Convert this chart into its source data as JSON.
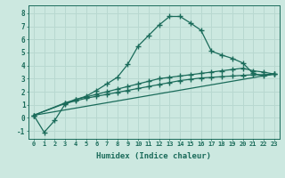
{
  "title": "",
  "xlabel": "Humidex (Indice chaleur)",
  "xlim": [
    -0.5,
    23.5
  ],
  "ylim": [
    -1.6,
    8.6
  ],
  "xticks": [
    0,
    1,
    2,
    3,
    4,
    5,
    6,
    7,
    8,
    9,
    10,
    11,
    12,
    13,
    14,
    15,
    16,
    17,
    18,
    19,
    20,
    21,
    22,
    23
  ],
  "yticks": [
    -1,
    0,
    1,
    2,
    3,
    4,
    5,
    6,
    7,
    8
  ],
  "bg_color": "#cce8e0",
  "grid_color": "#b8d8d0",
  "line_color": "#1a6b5a",
  "curve1_x": [
    0,
    1,
    2,
    3,
    4,
    5,
    6,
    7,
    8,
    9,
    10,
    11,
    12,
    13,
    14,
    15,
    16,
    17,
    18,
    19,
    20,
    21,
    22,
    23
  ],
  "curve1_y": [
    0.2,
    -1.1,
    -0.2,
    1.05,
    1.4,
    1.65,
    2.1,
    2.6,
    3.1,
    4.1,
    5.5,
    6.3,
    7.1,
    7.75,
    7.75,
    7.25,
    6.7,
    5.1,
    4.8,
    4.55,
    4.2,
    3.4,
    3.2,
    3.35
  ],
  "curve2_x": [
    0,
    3,
    4,
    5,
    6,
    7,
    8,
    9,
    10,
    11,
    12,
    13,
    14,
    15,
    16,
    17,
    18,
    19,
    20,
    21,
    22,
    23
  ],
  "curve2_y": [
    0.2,
    1.1,
    1.3,
    1.5,
    1.65,
    1.8,
    1.95,
    2.1,
    2.25,
    2.4,
    2.55,
    2.7,
    2.85,
    2.95,
    3.05,
    3.1,
    3.15,
    3.2,
    3.25,
    3.3,
    3.3,
    3.35
  ],
  "curve3_x": [
    0,
    3,
    4,
    5,
    6,
    7,
    8,
    9,
    10,
    11,
    12,
    13,
    14,
    15,
    16,
    17,
    18,
    19,
    20,
    21,
    22,
    23
  ],
  "curve3_y": [
    0.2,
    1.15,
    1.4,
    1.6,
    1.8,
    2.0,
    2.2,
    2.4,
    2.6,
    2.8,
    3.0,
    3.1,
    3.2,
    3.3,
    3.4,
    3.5,
    3.6,
    3.7,
    3.8,
    3.6,
    3.5,
    3.35
  ],
  "curve4_x": [
    0,
    23
  ],
  "curve4_y": [
    0.2,
    3.35
  ]
}
